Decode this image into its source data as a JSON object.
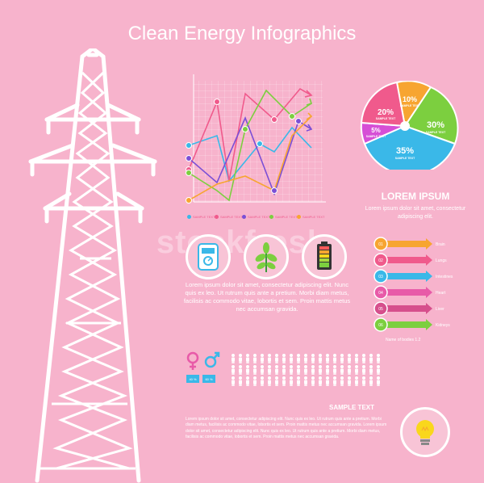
{
  "title": "Clean Energy Infographics",
  "watermark": "stockfresh",
  "colors": {
    "background": "#f7b3cc",
    "pink": "#f05a8c",
    "cyan": "#3ab8e8",
    "purple": "#7b4fd6",
    "green": "#7ccf3f",
    "orange": "#f7a531",
    "yellow": "#f9d71c"
  },
  "line_chart": {
    "legend": [
      "SAMPLE TEXT",
      "SAMPLE TEXT",
      "SAMPLE TEXT",
      "SAMPLE TEXT",
      "SAMPLE TEXT"
    ]
  },
  "pie": {
    "slices": [
      {
        "label": "10%",
        "sub": "SAMPLE TEXT",
        "value": 10
      },
      {
        "label": "30%",
        "sub": "SAMPLE TEXT",
        "value": 30
      },
      {
        "label": "35%",
        "sub": "SAMPLE TEXT",
        "value": 35
      },
      {
        "label": "5%",
        "sub": "SAMPLE TEXT",
        "value": 5
      },
      {
        "label": "20%",
        "sub": "SAMPLE TEXT",
        "value": 20
      }
    ]
  },
  "lorem": {
    "title": "LOREM IPSUM",
    "text": "Lorem ipsum dolor sit amet, consectetur adipiscing elit."
  },
  "body_text": "Lorem ipsum dolor sit amet, consectetur adipiscing elit. Nunc quis ex leo. Ut rutrum quis ante a pretium. Morbi diam metus, facilisis ac commodo vitae, lobortis et sem. Proin mattis metus nec accumsan gravida.",
  "organs": {
    "items": [
      {
        "num": "01",
        "label": "Brain"
      },
      {
        "num": "02",
        "label": "Lungs"
      },
      {
        "num": "03",
        "label": "Intestines"
      },
      {
        "num": "04",
        "label": "Heart"
      },
      {
        "num": "05",
        "label": "Liver"
      },
      {
        "num": "06",
        "label": "Kidneys"
      }
    ],
    "caption": "Name of bodies 1.2"
  },
  "gender": {
    "female_pct": "40 %",
    "male_pct": "60 %"
  },
  "sample": {
    "title": "SAMPLE TEXT",
    "text": "Lorem ipsum dolor sit amet, consectetur adipiscing elit. Nunc quis ex leo. Ut rutrum quis ante a pretium. Morbi diam metus, facilisis ac commodo vitae, lobortis et sem. Proin mattis metus nec accumsan gravida. Lorem ipsum dolor sit amet, consectetur adipiscing elit. Nunc quis ex leo. Ut rutrum quis ante a pretium. Morbi diam metus, facilisis ac commodo vitae, lobortis et sem. Proin mattis metus nec accumsan gravida."
  },
  "icons": [
    "power-tower-icon",
    "meter-icon",
    "leaf-icon",
    "battery-icon",
    "light-bulb-icon",
    "female-icon",
    "male-icon",
    "person-icon"
  ]
}
